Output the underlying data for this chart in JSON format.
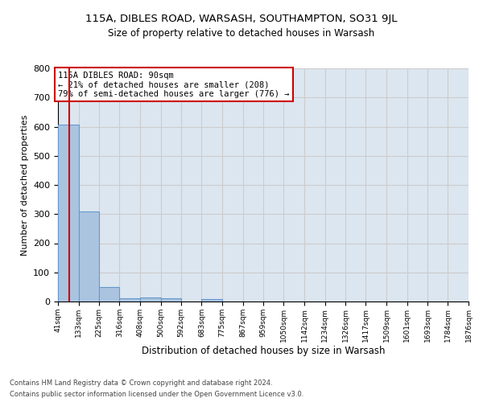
{
  "title1": "115A, DIBLES ROAD, WARSASH, SOUTHAMPTON, SO31 9JL",
  "title2": "Size of property relative to detached houses in Warsash",
  "xlabel": "Distribution of detached houses by size in Warsash",
  "ylabel": "Number of detached properties",
  "bin_edges": [
    41,
    133,
    225,
    316,
    408,
    500,
    592,
    683,
    775,
    867,
    959,
    1050,
    1142,
    1234,
    1326,
    1417,
    1509,
    1601,
    1693,
    1784,
    1876
  ],
  "bar_heights": [
    608,
    310,
    50,
    12,
    14,
    12,
    0,
    8,
    0,
    0,
    0,
    0,
    0,
    0,
    0,
    0,
    0,
    0,
    0,
    0
  ],
  "bar_color": "#aac4e0",
  "bar_edgecolor": "#6699cc",
  "vline_x": 90,
  "vline_color": "#cc0000",
  "ylim": [
    0,
    800
  ],
  "yticks": [
    0,
    100,
    200,
    300,
    400,
    500,
    600,
    700,
    800
  ],
  "annotation_text": "115A DIBLES ROAD: 90sqm\n← 21% of detached houses are smaller (208)\n79% of semi-detached houses are larger (776) →",
  "annotation_box_color": "#ffffff",
  "annotation_box_edgecolor": "#cc0000",
  "footer1": "Contains HM Land Registry data © Crown copyright and database right 2024.",
  "footer2": "Contains public sector information licensed under the Open Government Licence v3.0.",
  "grid_color": "#cccccc",
  "bg_color": "#dce6f0",
  "fig_bg_color": "#ffffff"
}
